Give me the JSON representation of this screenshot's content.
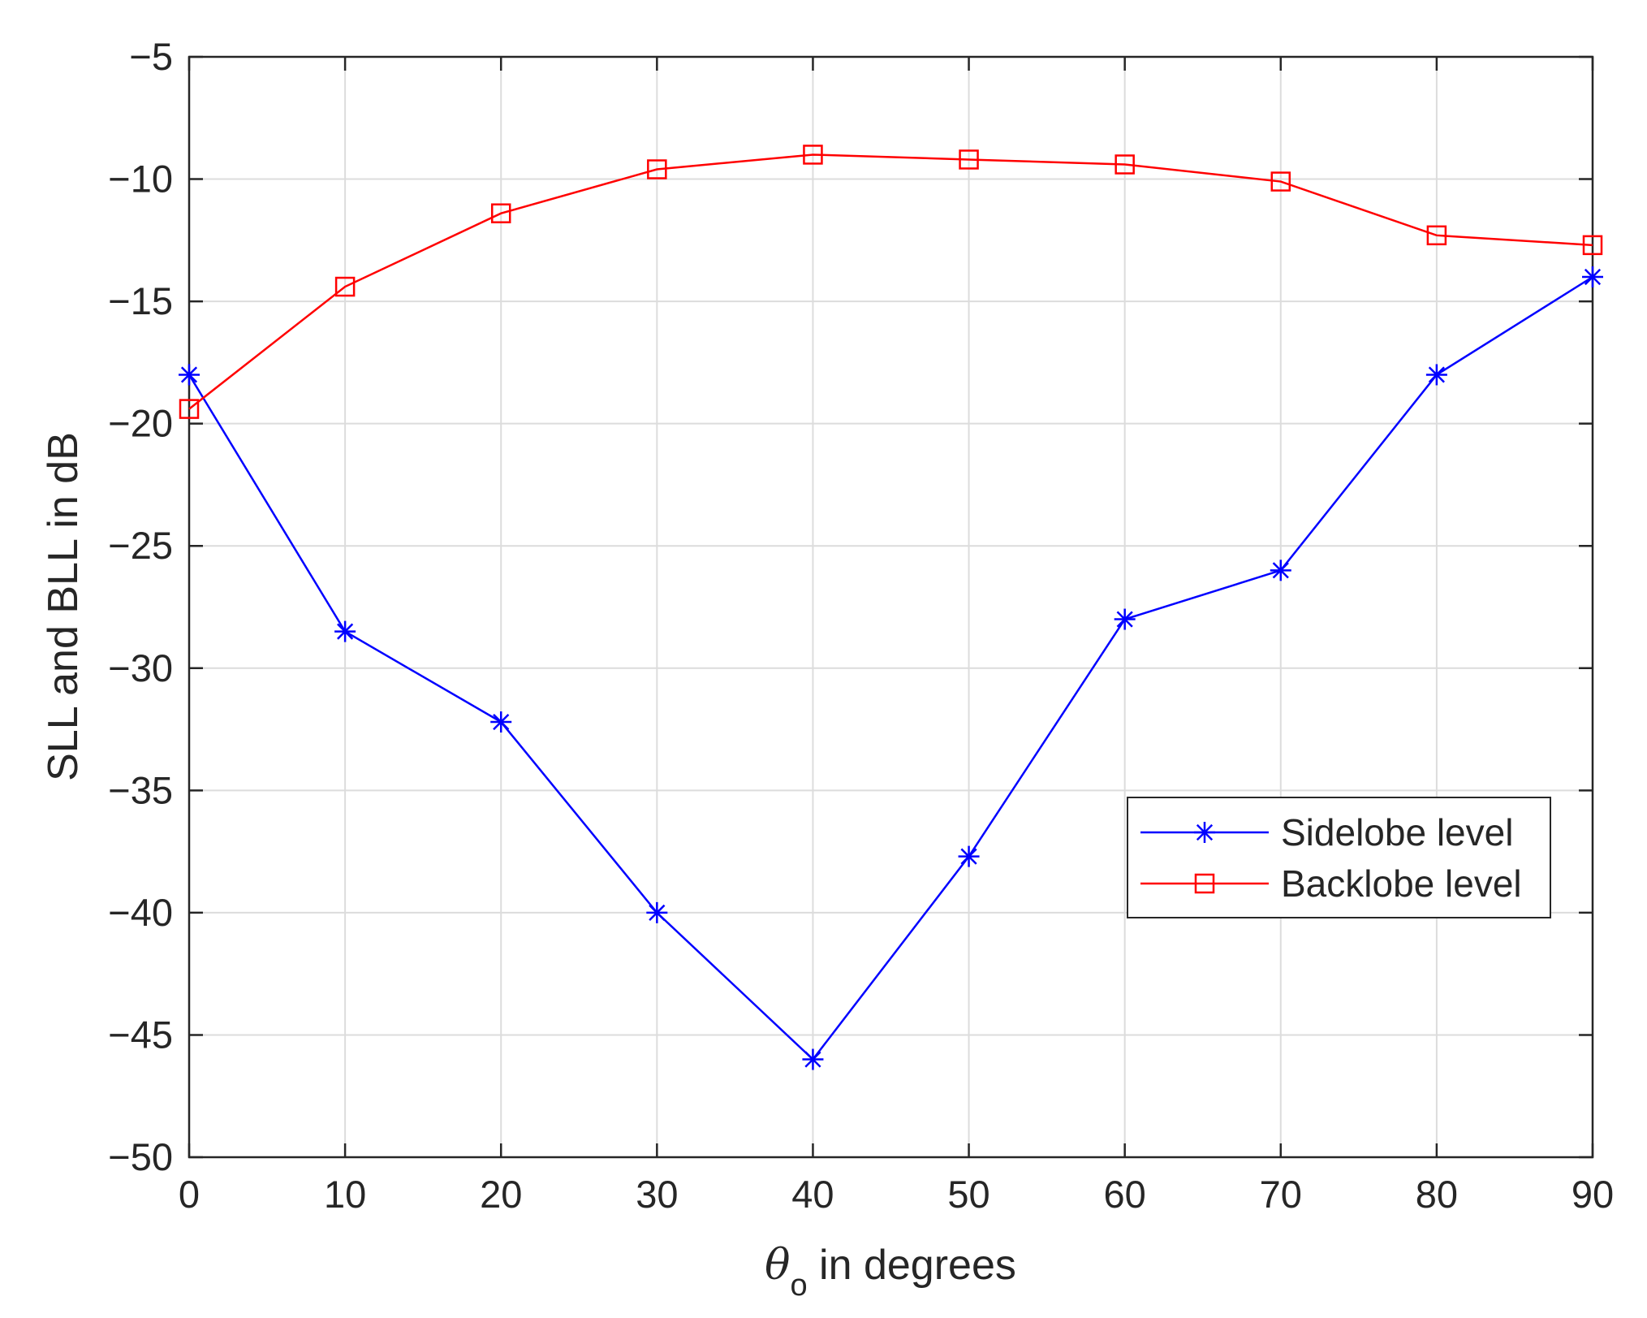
{
  "chart_data": {
    "type": "line",
    "xlabel": {
      "symbol": "θ",
      "subscript": "o",
      "rest": " in degrees"
    },
    "ylabel": "SLL and BLL in dB",
    "xlim": [
      0,
      90
    ],
    "ylim": [
      -50,
      -5
    ],
    "xticks": [
      0,
      10,
      20,
      30,
      40,
      50,
      60,
      70,
      80,
      90
    ],
    "yticks": [
      -5,
      -10,
      -15,
      -20,
      -25,
      -30,
      -35,
      -40,
      -45,
      -50
    ],
    "ytick_labels": [
      "−5",
      "−10",
      "−15",
      "−20",
      "−25",
      "−30",
      "−35",
      "−40",
      "−45",
      "−50"
    ],
    "grid": true,
    "legend_position": "lower-right",
    "x": [
      0,
      10,
      20,
      30,
      40,
      50,
      60,
      70,
      80,
      90
    ],
    "series": [
      {
        "name": "Sidelobe level",
        "color": "#0000ff",
        "marker": "asterisk",
        "values": [
          -18,
          -28.5,
          -32.2,
          -40,
          -46,
          -37.7,
          -28,
          -26,
          -18,
          -14
        ]
      },
      {
        "name": "Backlobe level",
        "color": "#ff0000",
        "marker": "square",
        "values": [
          -19.4,
          -14.4,
          -11.4,
          -9.6,
          -9,
          -9.2,
          -9.4,
          -10.1,
          -12.3,
          -12.7
        ]
      }
    ]
  }
}
